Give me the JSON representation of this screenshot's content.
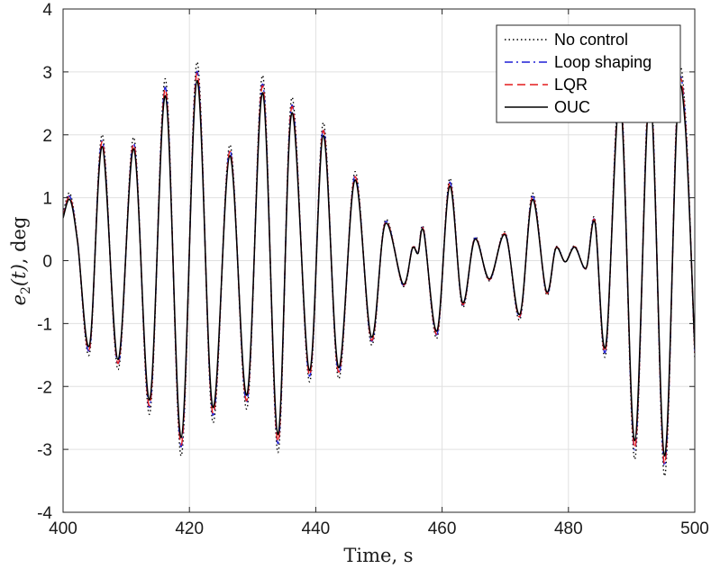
{
  "chart_data": {
    "type": "line",
    "title": "",
    "xlabel": "Time, s",
    "ylabel_base": "e",
    "ylabel_sub": "2",
    "ylabel_arg": "(t)",
    "ylabel_unit": ", deg",
    "xlim": [
      400,
      500
    ],
    "ylim": [
      -4,
      4
    ],
    "xticks": [
      400,
      420,
      440,
      460,
      480,
      500
    ],
    "xtick_labels": [
      "400",
      "420",
      "440",
      "460",
      "480",
      "500"
    ],
    "yticks": [
      -4,
      -3,
      -2,
      -1,
      0,
      1,
      2,
      3,
      4
    ],
    "ytick_labels": [
      "-4",
      "-3",
      "-2",
      "-1",
      "0",
      "1",
      "2",
      "3",
      "4"
    ],
    "grid": true,
    "legend_position": "top-right",
    "x": [
      400,
      401.1,
      402.3,
      404.2,
      406.2,
      408.7,
      411.2,
      413.7,
      416.2,
      418.7,
      421.2,
      423.7,
      426.4,
      429.1,
      431.6,
      434.0,
      436.2,
      439.0,
      441.2,
      443.6,
      446.2,
      448.8,
      451.0,
      453.8,
      455.3,
      456.2,
      457.1,
      459.2,
      461.2,
      463.2,
      465.2,
      467.5,
      470.0,
      472.3,
      474.3,
      476.5,
      478.0,
      479.5,
      481.0,
      482.8,
      484.2,
      485.9,
      488.2,
      490.5,
      492.9,
      495.2,
      497.2,
      498.5,
      500
    ],
    "series": [
      {
        "name": "No control",
        "color": "#000000",
        "dash": "1.5 3",
        "width": 1.4,
        "amp": 1.07,
        "values": [
          0.7,
          1.0,
          0.3,
          -1.38,
          1.87,
          -1.62,
          1.83,
          -2.28,
          2.7,
          -2.9,
          2.95,
          -2.4,
          1.72,
          -2.2,
          2.75,
          -2.85,
          2.42,
          -1.8,
          2.05,
          -1.75,
          1.32,
          -1.25,
          0.6,
          -0.38,
          0.2,
          0.12,
          0.47,
          -1.15,
          1.22,
          -0.68,
          0.35,
          -0.3,
          0.42,
          -0.88,
          1.0,
          -0.5,
          0.2,
          -0.02,
          0.22,
          -0.12,
          0.62,
          -1.4,
          2.65,
          -2.95,
          2.75,
          -3.2,
          2.35,
          2.2,
          -1.45
        ]
      },
      {
        "name": "Loop shaping",
        "color": "#1f1fd6",
        "dash": "9 4 2 4",
        "width": 1.4,
        "amp": 1.02,
        "values": [
          0.7,
          1.0,
          0.3,
          -1.38,
          1.87,
          -1.62,
          1.83,
          -2.28,
          2.7,
          -2.9,
          2.95,
          -2.4,
          1.72,
          -2.2,
          2.75,
          -2.85,
          2.42,
          -1.8,
          2.05,
          -1.75,
          1.32,
          -1.25,
          0.6,
          -0.38,
          0.2,
          0.12,
          0.47,
          -1.15,
          1.22,
          -0.68,
          0.35,
          -0.3,
          0.42,
          -0.88,
          1.0,
          -0.5,
          0.2,
          -0.02,
          0.22,
          -0.12,
          0.62,
          -1.4,
          2.65,
          -2.95,
          2.75,
          -3.2,
          2.35,
          2.2,
          -1.45
        ]
      },
      {
        "name": "LQR",
        "color": "#e41a1c",
        "dash": "9 5",
        "width": 1.4,
        "amp": 1.01,
        "values": [
          0.7,
          1.0,
          0.3,
          -1.38,
          1.87,
          -1.62,
          1.83,
          -2.28,
          2.7,
          -2.9,
          2.95,
          -2.4,
          1.72,
          -2.2,
          2.75,
          -2.85,
          2.42,
          -1.8,
          2.05,
          -1.75,
          1.32,
          -1.25,
          0.6,
          -0.38,
          0.2,
          0.12,
          0.47,
          -1.15,
          1.22,
          -0.68,
          0.35,
          -0.3,
          0.42,
          -0.88,
          1.0,
          -0.5,
          0.2,
          -0.02,
          0.22,
          -0.12,
          0.62,
          -1.4,
          2.65,
          -2.95,
          2.75,
          -3.2,
          2.35,
          2.2,
          -1.45
        ]
      },
      {
        "name": "OUC",
        "color": "#000000",
        "dash": "",
        "width": 1.5,
        "amp": 0.97,
        "values": [
          0.7,
          1.0,
          0.3,
          -1.38,
          1.87,
          -1.62,
          1.83,
          -2.28,
          2.7,
          -2.9,
          2.95,
          -2.4,
          1.72,
          -2.2,
          2.75,
          -2.85,
          2.42,
          -1.8,
          2.05,
          -1.75,
          1.32,
          -1.25,
          0.6,
          -0.38,
          0.2,
          0.12,
          0.47,
          -1.15,
          1.22,
          -0.68,
          0.35,
          -0.3,
          0.42,
          -0.88,
          1.0,
          -0.5,
          0.2,
          -0.02,
          0.22,
          -0.12,
          0.62,
          -1.4,
          2.65,
          -2.95,
          2.75,
          -3.2,
          2.35,
          2.2,
          -1.45
        ]
      }
    ]
  }
}
